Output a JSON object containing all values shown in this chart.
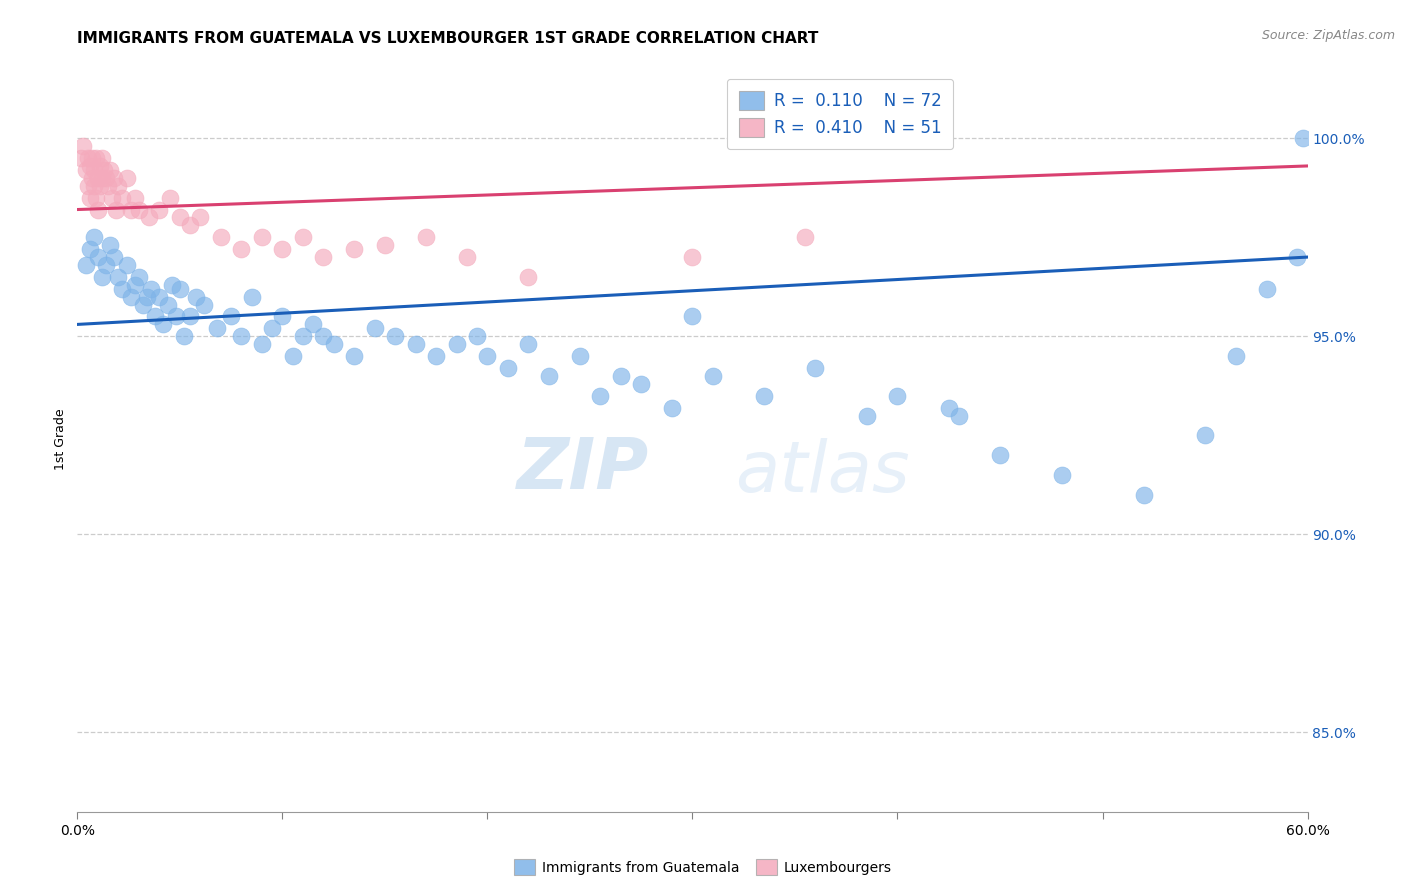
{
  "title": "IMMIGRANTS FROM GUATEMALA VS LUXEMBOURGER 1ST GRADE CORRELATION CHART",
  "source": "Source: ZipAtlas.com",
  "ylabel": "1st Grade",
  "right_yticks": [
    85.0,
    90.0,
    95.0,
    100.0
  ],
  "right_ytick_labels": [
    "85.0%",
    "90.0%",
    "95.0%",
    "100.0%"
  ],
  "xlim": [
    0.0,
    60.0
  ],
  "ylim": [
    83.0,
    101.8
  ],
  "legend_blue_r": "0.110",
  "legend_blue_n": "72",
  "legend_pink_r": "0.410",
  "legend_pink_n": "51",
  "legend_label_blue": "Immigrants from Guatemala",
  "legend_label_pink": "Luxembourgers",
  "blue_color": "#7EB3E8",
  "pink_color": "#F4AABC",
  "blue_line_color": "#1A5EB8",
  "pink_line_color": "#D94070",
  "blue_scatter_x": [
    0.4,
    0.6,
    0.8,
    1.0,
    1.2,
    1.4,
    1.6,
    1.8,
    2.0,
    2.2,
    2.4,
    2.6,
    2.8,
    3.0,
    3.2,
    3.4,
    3.6,
    3.8,
    4.0,
    4.2,
    4.4,
    4.6,
    4.8,
    5.0,
    5.2,
    5.5,
    5.8,
    6.2,
    6.8,
    7.5,
    8.0,
    8.5,
    9.0,
    9.5,
    10.0,
    10.5,
    11.0,
    11.5,
    12.0,
    12.5,
    13.5,
    14.5,
    15.5,
    16.5,
    17.5,
    18.5,
    19.5,
    20.0,
    21.0,
    22.0,
    23.0,
    24.5,
    25.5,
    26.5,
    27.5,
    29.0,
    31.0,
    33.5,
    36.0,
    38.5,
    40.0,
    43.0,
    45.0,
    48.0,
    52.0,
    55.0,
    56.5,
    58.0,
    59.5,
    59.8,
    30.0,
    42.5
  ],
  "blue_scatter_y": [
    96.8,
    97.2,
    97.5,
    97.0,
    96.5,
    96.8,
    97.3,
    97.0,
    96.5,
    96.2,
    96.8,
    96.0,
    96.3,
    96.5,
    95.8,
    96.0,
    96.2,
    95.5,
    96.0,
    95.3,
    95.8,
    96.3,
    95.5,
    96.2,
    95.0,
    95.5,
    96.0,
    95.8,
    95.2,
    95.5,
    95.0,
    96.0,
    94.8,
    95.2,
    95.5,
    94.5,
    95.0,
    95.3,
    95.0,
    94.8,
    94.5,
    95.2,
    95.0,
    94.8,
    94.5,
    94.8,
    95.0,
    94.5,
    94.2,
    94.8,
    94.0,
    94.5,
    93.5,
    94.0,
    93.8,
    93.2,
    94.0,
    93.5,
    94.2,
    93.0,
    93.5,
    93.0,
    92.0,
    91.5,
    91.0,
    92.5,
    94.5,
    96.2,
    97.0,
    100.0,
    95.5,
    93.2
  ],
  "pink_scatter_x": [
    0.2,
    0.3,
    0.4,
    0.5,
    0.5,
    0.6,
    0.6,
    0.7,
    0.7,
    0.8,
    0.8,
    0.9,
    0.9,
    1.0,
    1.0,
    1.1,
    1.1,
    1.2,
    1.2,
    1.3,
    1.4,
    1.5,
    1.6,
    1.7,
    1.8,
    1.9,
    2.0,
    2.2,
    2.4,
    2.6,
    2.8,
    3.0,
    3.5,
    4.0,
    4.5,
    5.0,
    5.5,
    6.0,
    7.0,
    8.0,
    9.0,
    10.0,
    11.0,
    12.0,
    13.5,
    15.0,
    17.0,
    19.0,
    22.0,
    30.0,
    35.5
  ],
  "pink_scatter_y": [
    99.5,
    99.8,
    99.2,
    99.5,
    98.8,
    99.3,
    98.5,
    99.0,
    99.5,
    98.8,
    99.2,
    99.5,
    98.5,
    99.0,
    98.2,
    99.3,
    98.8,
    99.0,
    99.5,
    99.2,
    99.0,
    98.8,
    99.2,
    98.5,
    99.0,
    98.2,
    98.8,
    98.5,
    99.0,
    98.2,
    98.5,
    98.2,
    98.0,
    98.2,
    98.5,
    98.0,
    97.8,
    98.0,
    97.5,
    97.2,
    97.5,
    97.2,
    97.5,
    97.0,
    97.2,
    97.3,
    97.5,
    97.0,
    96.5,
    97.0,
    97.5
  ],
  "blue_trend_x": [
    0.0,
    60.0
  ],
  "blue_trend_y": [
    95.3,
    97.0
  ],
  "pink_trend_x": [
    0.0,
    60.0
  ],
  "pink_trend_y": [
    98.2,
    99.3
  ],
  "watermark_zip": "ZIP",
  "watermark_atlas": "atlas",
  "title_fontsize": 11,
  "axis_label_fontsize": 9,
  "tick_fontsize": 10,
  "source_fontsize": 9
}
